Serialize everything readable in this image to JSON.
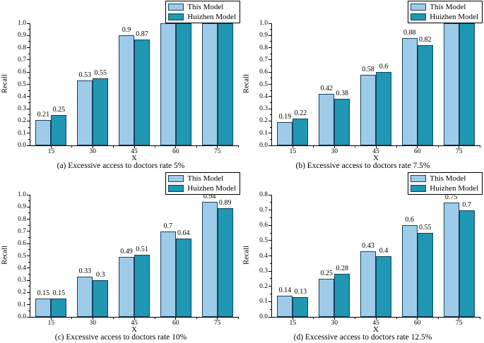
{
  "colors": {
    "this_model_fill": "#9dcbe8",
    "huizhen_model_fill": "#2097b3",
    "bar_border": "#17425f",
    "axis": "#000000",
    "background": "#ffffff",
    "text": "#000000"
  },
  "legend": {
    "labels": [
      "This Model",
      "Huizhen Model"
    ],
    "position": "top-right"
  },
  "chart_data": [
    {
      "id": "a",
      "type": "bar",
      "title": "(a) Excessive access to doctors rate 5%",
      "xlabel": "X",
      "ylabel": "Recall",
      "categories": [
        "15",
        "30",
        "45",
        "60",
        "75"
      ],
      "series": [
        {
          "name": "This Model",
          "values": [
            0.21,
            0.53,
            0.9,
            1,
            1
          ],
          "labels": [
            "0.21",
            "0.53",
            "0.9",
            "1",
            "1"
          ]
        },
        {
          "name": "Huizhen Model",
          "values": [
            0.25,
            0.55,
            0.87,
            1,
            1
          ],
          "labels": [
            "0.25",
            "0.55",
            "0.87",
            "1",
            "1"
          ]
        }
      ],
      "ylim": [
        0,
        1.0
      ],
      "yticks": [
        "0.0",
        "0.1",
        "0.2",
        "0.3",
        "0.4",
        "0.5",
        "0.6",
        "0.7",
        "0.8",
        "0.9",
        "1.0"
      ],
      "legend_position": "top-right",
      "grid": false
    },
    {
      "id": "b",
      "type": "bar",
      "title": "(b) Excessive access to doctors rate 7.5%",
      "xlabel": "X",
      "ylabel": "Recall",
      "categories": [
        "15",
        "30",
        "45",
        "60",
        "75"
      ],
      "series": [
        {
          "name": "This Model",
          "values": [
            0.19,
            0.42,
            0.58,
            0.88,
            1
          ],
          "labels": [
            "0.19",
            "0.42",
            "0.58",
            "0.88",
            "1"
          ]
        },
        {
          "name": "Huizhen Model",
          "values": [
            0.22,
            0.38,
            0.6,
            0.82,
            1
          ],
          "labels": [
            "0.22",
            "0.38",
            "0.6",
            "0.82",
            "1"
          ]
        }
      ],
      "ylim": [
        0,
        1.0
      ],
      "yticks": [
        "0.0",
        "0.1",
        "0.2",
        "0.3",
        "0.4",
        "0.5",
        "0.6",
        "0.7",
        "0.8",
        "0.9",
        "1.0"
      ],
      "legend_position": "top-right",
      "grid": false
    },
    {
      "id": "c",
      "type": "bar",
      "title": "(c) Excessive access to doctors rate 10%",
      "xlabel": "X",
      "ylabel": "Recall",
      "categories": [
        "15",
        "30",
        "45",
        "60",
        "75"
      ],
      "series": [
        {
          "name": "This Model",
          "values": [
            0.15,
            0.33,
            0.49,
            0.7,
            0.94
          ],
          "labels": [
            "0.15",
            "0.33",
            "0.49",
            "0.7",
            "0.94"
          ]
        },
        {
          "name": "Huizhen Model",
          "values": [
            0.15,
            0.3,
            0.51,
            0.64,
            0.89
          ],
          "labels": [
            "0.15",
            "0.3",
            "0.51",
            "0.64",
            "0.89"
          ]
        }
      ],
      "ylim": [
        0,
        1.0
      ],
      "yticks": [
        "0.0",
        "0.1",
        "0.2",
        "0.3",
        "0.4",
        "0.5",
        "0.6",
        "0.7",
        "0.8",
        "0.9",
        "1.0"
      ],
      "legend_position": "top-right",
      "grid": false
    },
    {
      "id": "d",
      "type": "bar",
      "title": "(d) Excessive access to doctors rate 12.5%",
      "xlabel": "X",
      "ylabel": "Recall",
      "categories": [
        "15",
        "30",
        "45",
        "60",
        "75"
      ],
      "series": [
        {
          "name": "This Model",
          "values": [
            0.14,
            0.25,
            0.43,
            0.6,
            0.75
          ],
          "labels": [
            "0.14",
            "0.25",
            "0.43",
            "0.6",
            "0.75"
          ]
        },
        {
          "name": "Huizhen Model",
          "values": [
            0.13,
            0.28,
            0.4,
            0.55,
            0.7
          ],
          "labels": [
            "0.13",
            "0.28",
            "0.4",
            "0.55",
            "0.7"
          ]
        }
      ],
      "ylim": [
        0,
        0.8
      ],
      "yticks": [
        "0.0",
        "0.1",
        "0.2",
        "0.3",
        "0.4",
        "0.5",
        "0.6",
        "0.7",
        "0.8"
      ],
      "legend_position": "top-right",
      "grid": false
    }
  ]
}
